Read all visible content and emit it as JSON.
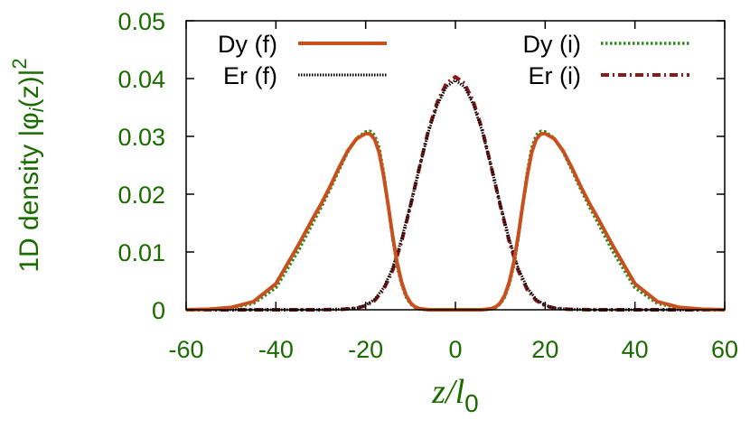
{
  "chart_data": {
    "type": "line",
    "xlabel_main": "z/l",
    "xlabel_sub": "0",
    "ylabel_main": "1D density |φ",
    "ylabel_sub": "i",
    "ylabel_arg": "(z)|",
    "ylabel_sup": "2",
    "xlim": [
      -60,
      60
    ],
    "ylim": [
      0,
      0.05
    ],
    "x_ticks": [
      "-60",
      "-40",
      "-20",
      "0",
      "20",
      "40",
      "60"
    ],
    "x_tick_values": [
      -60,
      -40,
      -20,
      0,
      20,
      40,
      60
    ],
    "y_ticks": [
      "0",
      "0.01",
      "0.02",
      "0.03",
      "0.04",
      "0.05"
    ],
    "y_tick_values": [
      0,
      0.01,
      0.02,
      0.03,
      0.04,
      0.05
    ],
    "legend_placement": "top",
    "colors": {
      "axis_text": "#1a6b00",
      "dy_f": "#c8501e",
      "er_f": "#000000",
      "dy_i": "#2e8b1f",
      "er_i": "#8b1a1a"
    },
    "series": [
      {
        "name": "Dy (f)",
        "style": "solid",
        "x": [
          -60,
          -55,
          -50,
          -45,
          -40,
          -35,
          -32,
          -30,
          -28,
          -26,
          -24,
          -22,
          -20,
          -19,
          -18,
          -17,
          -16,
          -15,
          -14,
          -13,
          -12,
          -11,
          -10,
          -9,
          -8,
          -6,
          -4,
          -2,
          0,
          2,
          4,
          6,
          8,
          9,
          10,
          11,
          12,
          13,
          14,
          15,
          16,
          17,
          18,
          19,
          20,
          22,
          24,
          26,
          28,
          30,
          32,
          35,
          40,
          45,
          50,
          55,
          60
        ],
        "y": [
          0,
          0.0001,
          0.0004,
          0.0014,
          0.0045,
          0.0112,
          0.0155,
          0.0182,
          0.0212,
          0.0245,
          0.0275,
          0.0296,
          0.0305,
          0.0304,
          0.0295,
          0.0272,
          0.0232,
          0.0182,
          0.0128,
          0.0082,
          0.0048,
          0.0025,
          0.0012,
          0.0005,
          0.0002,
          0,
          0,
          0,
          0,
          0,
          0,
          0,
          0.0002,
          0.0005,
          0.0012,
          0.0025,
          0.0048,
          0.0082,
          0.0128,
          0.0182,
          0.0232,
          0.0272,
          0.0295,
          0.0304,
          0.0305,
          0.0296,
          0.0275,
          0.0245,
          0.0212,
          0.0182,
          0.0155,
          0.0112,
          0.0045,
          0.0014,
          0.0004,
          0.0001,
          0
        ]
      },
      {
        "name": "Er (f)",
        "style": "dotted",
        "x": [
          -60,
          -40,
          -30,
          -25,
          -22,
          -20,
          -18,
          -16,
          -14,
          -12,
          -10,
          -8,
          -6,
          -4,
          -2,
          0,
          2,
          4,
          6,
          8,
          10,
          12,
          14,
          16,
          18,
          20,
          22,
          25,
          30,
          40,
          60
        ],
        "y": [
          0,
          0,
          0,
          0.0001,
          0.0003,
          0.0008,
          0.0018,
          0.0038,
          0.0072,
          0.0122,
          0.0182,
          0.0247,
          0.0308,
          0.0355,
          0.0386,
          0.0397,
          0.0386,
          0.0355,
          0.0308,
          0.0247,
          0.0182,
          0.0122,
          0.0072,
          0.0038,
          0.0018,
          0.0008,
          0.0003,
          0.0001,
          0,
          0,
          0
        ]
      },
      {
        "name": "Dy (i)",
        "style": "dotted",
        "x": [
          -60,
          -55,
          -50,
          -45,
          -40,
          -35,
          -32,
          -30,
          -28,
          -26,
          -24,
          -22,
          -20,
          -19,
          -18,
          -17,
          -16,
          -15,
          -14,
          -13,
          -12,
          -11,
          -10,
          -9,
          -8,
          -6,
          -4,
          -2,
          0,
          2,
          4,
          6,
          8,
          9,
          10,
          11,
          12,
          13,
          14,
          15,
          16,
          17,
          18,
          19,
          20,
          22,
          24,
          26,
          28,
          30,
          32,
          35,
          40,
          45,
          50,
          55,
          60
        ],
        "y": [
          0,
          0.0001,
          0.0003,
          0.0011,
          0.0038,
          0.0102,
          0.0147,
          0.0176,
          0.0207,
          0.0241,
          0.0273,
          0.0297,
          0.0308,
          0.0309,
          0.0302,
          0.028,
          0.0238,
          0.0182,
          0.0124,
          0.0077,
          0.0044,
          0.0022,
          0.001,
          0.0004,
          0.0001,
          0,
          0,
          0,
          0,
          0,
          0,
          0,
          0.0001,
          0.0004,
          0.001,
          0.0022,
          0.0044,
          0.0077,
          0.0124,
          0.0182,
          0.0238,
          0.028,
          0.0302,
          0.0309,
          0.0308,
          0.0297,
          0.0273,
          0.0241,
          0.0207,
          0.0176,
          0.0147,
          0.0102,
          0.0038,
          0.0011,
          0.0003,
          0.0001,
          0
        ]
      },
      {
        "name": "Er (i)",
        "style": "dashdot",
        "x": [
          -60,
          -40,
          -30,
          -25,
          -22,
          -20,
          -18,
          -16,
          -14,
          -12,
          -10,
          -8,
          -6,
          -4,
          -2,
          0,
          2,
          4,
          6,
          8,
          10,
          12,
          14,
          16,
          18,
          20,
          22,
          25,
          30,
          40,
          60
        ],
        "y": [
          0,
          0,
          0,
          0.0001,
          0.0003,
          0.0007,
          0.0016,
          0.0035,
          0.0068,
          0.0118,
          0.018,
          0.0247,
          0.0311,
          0.036,
          0.0392,
          0.0403,
          0.0392,
          0.036,
          0.0311,
          0.0247,
          0.018,
          0.0118,
          0.0068,
          0.0035,
          0.0016,
          0.0007,
          0.0003,
          0.0001,
          0,
          0,
          0
        ]
      }
    ]
  }
}
